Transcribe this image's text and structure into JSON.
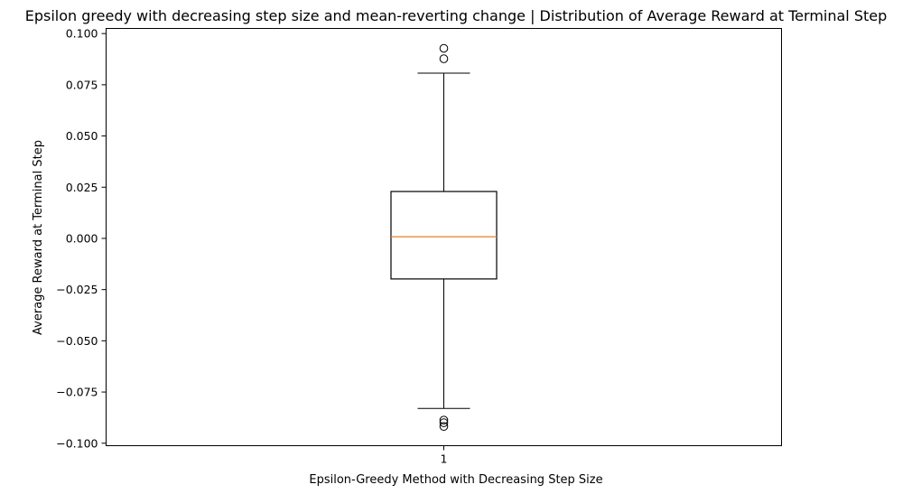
{
  "chart_data": {
    "type": "box",
    "title": "Epsilon greedy with decreasing step size and mean-reverting change | Distribution of Average Reward at Terminal Step",
    "xlabel": "Epsilon-Greedy Method with Decreasing Step Size",
    "ylabel": "Average Reward at Terminal Step",
    "categories": [
      "1"
    ],
    "ylim": [
      -0.1012,
      0.1025
    ],
    "yticks": [
      {
        "value": 0.1,
        "label": "0.100"
      },
      {
        "value": 0.075,
        "label": "0.075"
      },
      {
        "value": 0.05,
        "label": "0.050"
      },
      {
        "value": 0.025,
        "label": "0.025"
      },
      {
        "value": 0.0,
        "label": "0.000"
      },
      {
        "value": -0.025,
        "label": "−0.025"
      },
      {
        "value": -0.05,
        "label": "−0.050"
      },
      {
        "value": -0.075,
        "label": "−0.075"
      },
      {
        "value": -0.1,
        "label": "−0.100"
      }
    ],
    "boxes": [
      {
        "category": "1",
        "whisker_low": -0.083,
        "q1": -0.0198,
        "median": 0.0008,
        "q3": 0.0229,
        "whisker_high": 0.0807,
        "outliers": [
          0.0928,
          0.0877,
          -0.0887,
          -0.09,
          -0.0918
        ]
      }
    ],
    "colors": {
      "box": "#000000",
      "median": "#e6822a",
      "axes": "#000000"
    },
    "grid": false
  }
}
